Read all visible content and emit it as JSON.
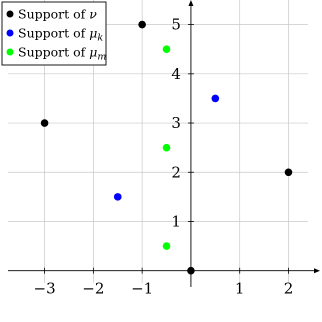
{
  "chart_data": {
    "type": "scatter",
    "title": "",
    "xlabel": "",
    "ylabel": "",
    "xlim": [
      -3.75,
      2.4
    ],
    "ylim": [
      -0.25,
      5.5
    ],
    "grid": true,
    "legend_position": "top-left",
    "x_ticks": [
      {
        "value": -3,
        "label": "−3"
      },
      {
        "value": -2,
        "label": "−2"
      },
      {
        "value": -1,
        "label": "−1"
      },
      {
        "value": 1,
        "label": "1"
      },
      {
        "value": 2,
        "label": "2"
      }
    ],
    "y_ticks": [
      {
        "value": 1,
        "label": "1"
      },
      {
        "value": 2,
        "label": "2"
      },
      {
        "value": 3,
        "label": "3"
      },
      {
        "value": 4,
        "label": "4"
      },
      {
        "value": 5,
        "label": "5"
      }
    ],
    "series": [
      {
        "name_prefix": "Support of ",
        "name_symbol": "ν",
        "name_subscript": "",
        "color": "#000000",
        "points": [
          [
            -3,
            3
          ],
          [
            -1,
            5
          ],
          [
            0,
            0
          ],
          [
            2,
            2
          ]
        ]
      },
      {
        "name_prefix": "Support of ",
        "name_symbol": "μ",
        "name_subscript": "k",
        "color": "#0000ff",
        "points": [
          [
            -1.5,
            1.5
          ],
          [
            0.5,
            3.5
          ]
        ]
      },
      {
        "name_prefix": "Support of ",
        "name_symbol": "μ",
        "name_subscript": "m",
        "color": "#00ff00",
        "points": [
          [
            -0.5,
            0.5
          ],
          [
            -0.5,
            2.5
          ],
          [
            -0.5,
            4.5
          ]
        ]
      }
    ]
  }
}
